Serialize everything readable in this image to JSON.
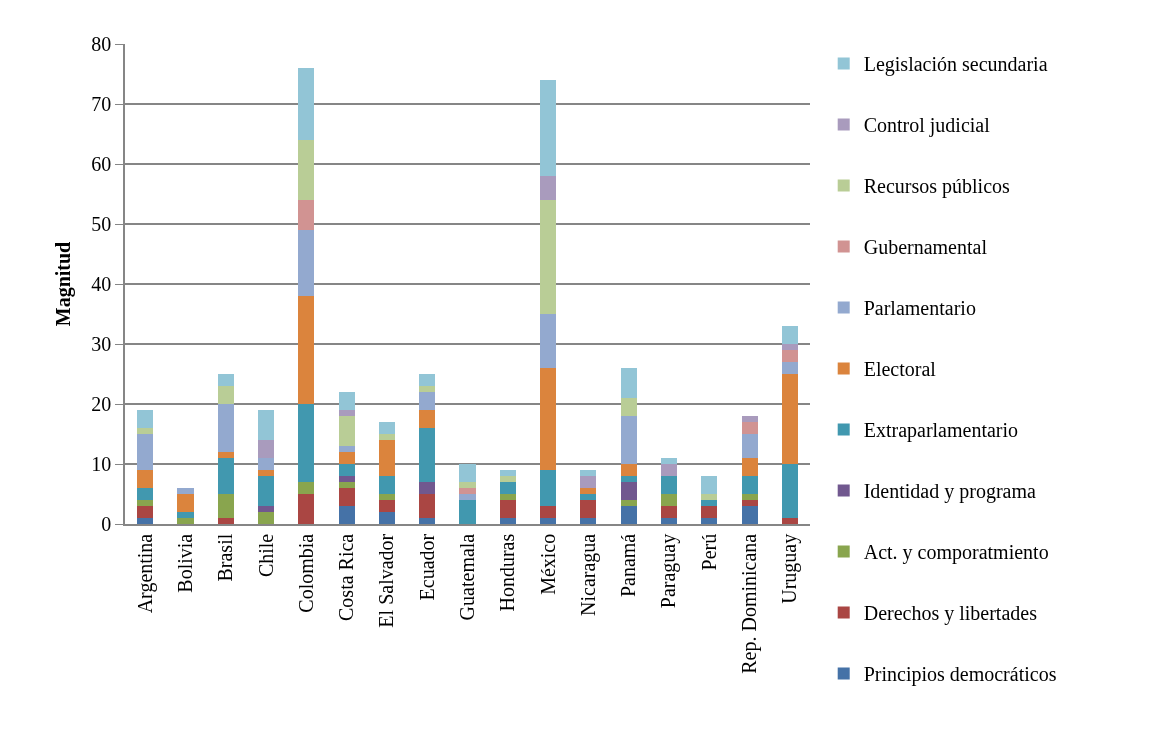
{
  "chart_data": {
    "type": "bar",
    "stacked": true,
    "ylabel": "Magnitud",
    "categories": [
      "Argentina",
      "Bolivia",
      "Brasil",
      "Chile",
      "Colombia",
      "Costa Rica",
      "El Salvador",
      "Ecuador",
      "Guatemala",
      "Honduras",
      "México",
      "Nicaragua",
      "Panamá",
      "Paraguay",
      "Perú",
      "Rep. Dominicana",
      "Uruguay"
    ],
    "series": [
      {
        "name": "Principios democráticos",
        "color": "#4572a7",
        "values": [
          1,
          0,
          0,
          0,
          0,
          3,
          2,
          1,
          0,
          1,
          1,
          1,
          3,
          1,
          1,
          3,
          0
        ]
      },
      {
        "name": "Derechos y libertades",
        "color": "#aa4643",
        "values": [
          2,
          0,
          1,
          0,
          5,
          3,
          2,
          4,
          0,
          3,
          2,
          3,
          0,
          2,
          2,
          1,
          1
        ]
      },
      {
        "name": "Act. y comporatmiento",
        "color": "#89a54e",
        "values": [
          1,
          1,
          4,
          2,
          2,
          1,
          1,
          0,
          0,
          1,
          0,
          0,
          1,
          2,
          0,
          1,
          0
        ]
      },
      {
        "name": "Identidad y programa",
        "color": "#71588f",
        "values": [
          0,
          0,
          0,
          1,
          0,
          1,
          0,
          2,
          0,
          0,
          0,
          0,
          3,
          0,
          0,
          0,
          0
        ]
      },
      {
        "name": "Extraparlamentario",
        "color": "#4198af",
        "values": [
          2,
          1,
          6,
          5,
          13,
          2,
          3,
          9,
          4,
          2,
          6,
          1,
          1,
          3,
          1,
          3,
          9
        ]
      },
      {
        "name": "Electoral",
        "color": "#db843d",
        "values": [
          3,
          3,
          1,
          1,
          18,
          2,
          6,
          3,
          0,
          0,
          17,
          1,
          2,
          0,
          0,
          3,
          15
        ]
      },
      {
        "name": "Parlamentario",
        "color": "#93a9cf",
        "values": [
          6,
          1,
          8,
          2,
          11,
          1,
          0,
          3,
          1,
          0,
          9,
          0,
          8,
          0,
          0,
          4,
          2
        ]
      },
      {
        "name": "Gubernamental",
        "color": "#d19392",
        "values": [
          0,
          0,
          0,
          0,
          5,
          0,
          0,
          0,
          1,
          0,
          0,
          0,
          0,
          0,
          0,
          2,
          2
        ]
      },
      {
        "name": "Recursos públicos",
        "color": "#b9cd96",
        "values": [
          1,
          0,
          3,
          0,
          10,
          5,
          1,
          1,
          1,
          1,
          19,
          0,
          3,
          0,
          1,
          0,
          0
        ]
      },
      {
        "name": "Control judicial",
        "color": "#a99bbd",
        "values": [
          0,
          0,
          0,
          3,
          0,
          1,
          0,
          0,
          0,
          0,
          4,
          2,
          0,
          2,
          0,
          1,
          1
        ]
      },
      {
        "name": "Legislación secundaria",
        "color": "#92c5d6",
        "values": [
          3,
          0,
          2,
          5,
          12,
          3,
          2,
          2,
          3,
          1,
          16,
          1,
          5,
          1,
          3,
          0,
          3
        ]
      }
    ],
    "ylim": [
      0,
      80
    ],
    "yticks": [
      0,
      10,
      20,
      30,
      40,
      50,
      60,
      70,
      80
    ],
    "grid": "y",
    "legend": "right"
  }
}
